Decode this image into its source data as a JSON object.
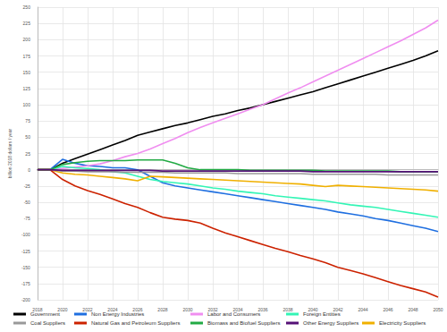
{
  "chart_data": {
    "type": "line",
    "y_label": "billion 2018 dollars / year",
    "x": [
      2018,
      2019,
      2020,
      2021,
      2022,
      2023,
      2024,
      2025,
      2026,
      2027,
      2028,
      2029,
      2030,
      2031,
      2032,
      2033,
      2034,
      2035,
      2036,
      2037,
      2038,
      2039,
      2040,
      2041,
      2042,
      2043,
      2044,
      2045,
      2046,
      2047,
      2048,
      2049,
      2050
    ],
    "xlim": [
      2018,
      2050
    ],
    "xticks": [
      2018,
      2020,
      2022,
      2024,
      2026,
      2028,
      2030,
      2032,
      2034,
      2036,
      2038,
      2040,
      2042,
      2044,
      2046,
      2048,
      2050
    ],
    "ylim": [
      -200,
      250
    ],
    "yticks": [
      -200,
      -175,
      -150,
      -125,
      -100,
      -75,
      -50,
      -25,
      0,
      25,
      50,
      75,
      100,
      125,
      150,
      175,
      200,
      225,
      250
    ],
    "grid": true,
    "legend": "bottom",
    "series": [
      {
        "name": "Government",
        "color": "#000000",
        "values": [
          0,
          0,
          10,
          17,
          24,
          31,
          38,
          45,
          53,
          58,
          63,
          68,
          72,
          77,
          82,
          86,
          91,
          95,
          100,
          105,
          110,
          115,
          120,
          126,
          132,
          138,
          144,
          150,
          156,
          162,
          168,
          175,
          183
        ]
      },
      {
        "name": "Non Energy Industries",
        "color": "#1f6fe0",
        "values": [
          0,
          0,
          16,
          10,
          6,
          5,
          3,
          3,
          0,
          -10,
          -20,
          -25,
          -28,
          -31,
          -34,
          -37,
          -40,
          -43,
          -46,
          -49,
          -52,
          -55,
          -58,
          -61,
          -65,
          -68,
          -71,
          -75,
          -78,
          -82,
          -86,
          -90,
          -95
        ]
      },
      {
        "name": "Labor and Consumers",
        "color": "#f08ef0",
        "values": [
          0,
          0,
          2,
          4,
          6,
          9,
          14,
          20,
          25,
          32,
          40,
          48,
          57,
          65,
          72,
          79,
          86,
          93,
          100,
          109,
          118,
          126,
          135,
          144,
          153,
          162,
          171,
          180,
          189,
          198,
          208,
          218,
          230
        ]
      },
      {
        "name": "Foreign Entities",
        "color": "#33f5b5",
        "values": [
          0,
          0,
          5,
          3,
          2,
          0,
          -3,
          -5,
          -10,
          -15,
          -18,
          -20,
          -22,
          -25,
          -28,
          -30,
          -33,
          -35,
          -37,
          -40,
          -42,
          -44,
          -46,
          -48,
          -51,
          -54,
          -56,
          -58,
          -61,
          -64,
          -67,
          -70,
          -73
        ]
      },
      {
        "name": "Electricity Suppliers",
        "color": "#f0b000",
        "values": [
          0,
          0,
          -5,
          -7,
          -8,
          -10,
          -12,
          -14,
          -17,
          -10,
          -11,
          -12,
          -13,
          -14,
          -15,
          -16,
          -17,
          -18,
          -19,
          -20,
          -21,
          -22,
          -24,
          -26,
          -24,
          -25,
          -26,
          -27,
          -28,
          -29,
          -30,
          -31,
          -33
        ]
      },
      {
        "name": "Coal Suppliers",
        "color": "#999999",
        "values": [
          0,
          0,
          -2,
          -2,
          -3,
          -3,
          -3,
          -4,
          -4,
          -4,
          -4,
          -5,
          -5,
          -5,
          -5,
          -5,
          -6,
          -6,
          -6,
          -6,
          -6,
          -6,
          -7,
          -7,
          -7,
          -7,
          -7,
          -7,
          -8,
          -8,
          -8,
          -8,
          -8
        ]
      },
      {
        "name": "Natural Gas and Petroleum Suppliers",
        "color": "#cc2200",
        "values": [
          0,
          0,
          -15,
          -25,
          -32,
          -38,
          -45,
          -52,
          -58,
          -66,
          -73,
          -76,
          -78,
          -82,
          -90,
          -97,
          -103,
          -109,
          -115,
          -121,
          -126,
          -132,
          -137,
          -143,
          -150,
          -155,
          -160,
          -166,
          -172,
          -178,
          -183,
          -188,
          -196
        ]
      },
      {
        "name": "Biomass and Biofuel Suppliers",
        "color": "#22aa44",
        "values": [
          0,
          0,
          8,
          11,
          13,
          14,
          14,
          14,
          15,
          15,
          15,
          10,
          3,
          0,
          0,
          0,
          0,
          -1,
          -1,
          -1,
          -1,
          -1,
          -1,
          -2,
          -2,
          -2,
          -2,
          -2,
          -2,
          -3,
          -3,
          -3,
          -3
        ]
      },
      {
        "name": "Other Energy Suppliers",
        "color": "#551177",
        "values": [
          0,
          0,
          -1,
          -1,
          -1,
          -1,
          -1,
          -1,
          -1,
          -1,
          -2,
          -2,
          -2,
          -2,
          -2,
          -2,
          -2,
          -2,
          -2,
          -2,
          -2,
          -2,
          -3,
          -3,
          -3,
          -3,
          -3,
          -3,
          -3,
          -3,
          -3,
          -3,
          -3
        ]
      }
    ]
  }
}
